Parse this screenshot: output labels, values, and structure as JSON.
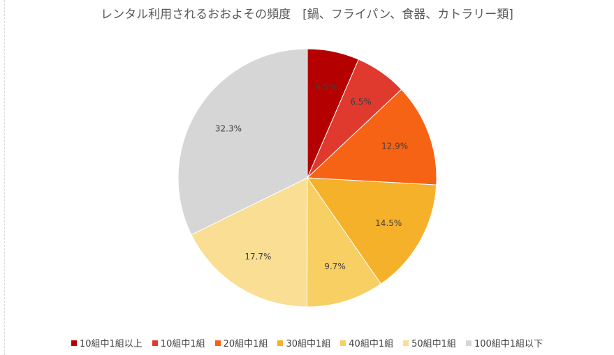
{
  "chart_data": {
    "type": "pie",
    "title": "レンタル利用されるおおよその頻度　[鍋、フライパン、食器、カトラリー類]",
    "categories": [
      "10組中1組以上",
      "10組中1組",
      "20組中1組",
      "30組中1組",
      "40組中1組",
      "50組中1組",
      "100組中1組以下"
    ],
    "values": [
      6.5,
      6.5,
      12.9,
      14.5,
      9.7,
      17.7,
      32.3
    ],
    "data_labels": [
      "6.5%",
      "6.5%",
      "12.9%",
      "14.5%",
      "9.7%",
      "17.7%",
      "32.3%"
    ],
    "colors": [
      "#b50000",
      "#e03a2f",
      "#f66314",
      "#f5b12a",
      "#f7cf62",
      "#f9de94",
      "#d6d6d6"
    ],
    "legend_position": "bottom",
    "start_angle_deg": 0,
    "direction": "clockwise"
  }
}
